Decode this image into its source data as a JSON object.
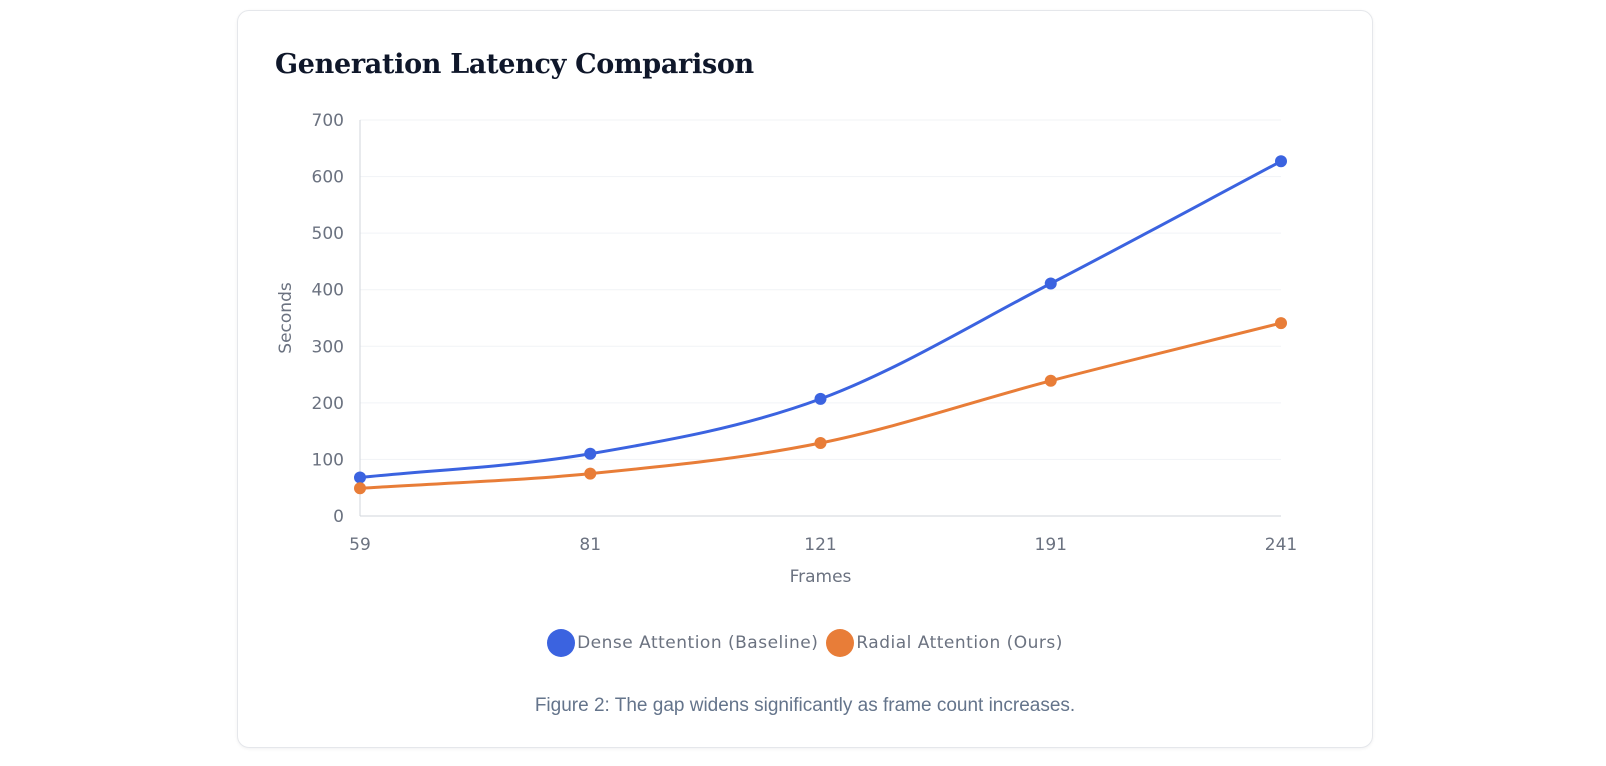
{
  "chart_data": {
    "type": "line",
    "title": "Generation Latency Comparison",
    "xlabel": "Frames",
    "ylabel": "Seconds",
    "categories": [
      "59",
      "81",
      "121",
      "191",
      "241"
    ],
    "yticks": [
      0,
      100,
      200,
      300,
      400,
      500,
      600,
      700
    ],
    "ylim": [
      0,
      700
    ],
    "grid": true,
    "legend_position": "bottom",
    "series": [
      {
        "name": "Dense Attention (Baseline)",
        "color": "#3b63e0",
        "values": [
          68,
          110,
          207,
          411,
          627
        ]
      },
      {
        "name": "Radial Attention (Ours)",
        "color": "#e87d38",
        "values": [
          49,
          75,
          129,
          239,
          341
        ]
      }
    ]
  },
  "caption": "Figure 2: The gap widens significantly as frame count increases."
}
